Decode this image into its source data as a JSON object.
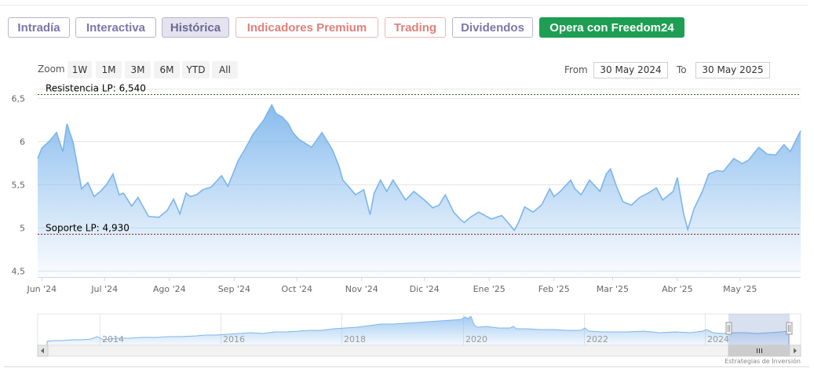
{
  "tabs": [
    {
      "label": "Intradía",
      "style": "normal"
    },
    {
      "label": "Interactiva",
      "style": "normal"
    },
    {
      "label": "Histórica",
      "style": "active"
    },
    {
      "label": "Indicadores Premium",
      "style": "premium"
    },
    {
      "label": "Trading",
      "style": "premium"
    },
    {
      "label": "Dividendos",
      "style": "normal"
    },
    {
      "label": "Opera con Freedom24",
      "style": "cta"
    }
  ],
  "zoom": {
    "label": "Zoom",
    "buttons": [
      "1W",
      "1M",
      "3M",
      "6M",
      "YTD",
      "All"
    ]
  },
  "range": {
    "from_label": "From",
    "from_value": "30 May 2024",
    "to_label": "To",
    "to_value": "30 May 2025"
  },
  "chart_data": {
    "type": "area",
    "y_ticks": [
      "6,5",
      "6",
      "5,5",
      "5",
      "4,5"
    ],
    "y_tick_values": [
      6.5,
      6.0,
      5.5,
      5.0,
      4.5
    ],
    "ylim": [
      4.43,
      6.58
    ],
    "xlim": [
      "2024-05-30",
      "2025-05-30"
    ],
    "x_ticks": [
      "Jun '24",
      "Jul '24",
      "Ago '24",
      "Sep '24",
      "Oct '24",
      "Nov '24",
      "Dic '24",
      "Ene '25",
      "Feb '25",
      "Mar '25",
      "Abr '25",
      "May '25"
    ],
    "x_tick_dates": [
      "2024-06-01",
      "2024-07-01",
      "2024-08-01",
      "2024-09-01",
      "2024-10-01",
      "2024-11-01",
      "2024-12-01",
      "2025-01-01",
      "2025-02-01",
      "2025-03-01",
      "2025-04-01",
      "2025-05-01"
    ],
    "grid": true,
    "series_color": "#7cb5ec",
    "series": [
      {
        "x": [
          "2024-05-30",
          "2024-06-01",
          "2024-06-05",
          "2024-06-08",
          "2024-06-11",
          "2024-06-13",
          "2024-06-16",
          "2024-06-20",
          "2024-06-23",
          "2024-06-26",
          "2024-06-29",
          "2024-07-02",
          "2024-07-05",
          "2024-07-08",
          "2024-07-10",
          "2024-07-14",
          "2024-07-17",
          "2024-07-22",
          "2024-07-27",
          "2024-07-31",
          "2024-08-03",
          "2024-08-06",
          "2024-08-09",
          "2024-08-11",
          "2024-08-14",
          "2024-08-17",
          "2024-08-21",
          "2024-08-26",
          "2024-08-29",
          "2024-08-31",
          "2024-09-03",
          "2024-09-06",
          "2024-09-10",
          "2024-09-15",
          "2024-09-19",
          "2024-09-21",
          "2024-09-24",
          "2024-09-27",
          "2024-09-29",
          "2024-10-02",
          "2024-10-08",
          "2024-10-13",
          "2024-10-18",
          "2024-10-21",
          "2024-10-23",
          "2024-10-27",
          "2024-10-29",
          "2024-11-02",
          "2024-11-05",
          "2024-11-07",
          "2024-11-10",
          "2024-11-13",
          "2024-11-16",
          "2024-11-22",
          "2024-11-26",
          "2024-12-01",
          "2024-12-05",
          "2024-12-08",
          "2024-12-11",
          "2024-12-15",
          "2024-12-18",
          "2024-12-20",
          "2024-12-23",
          "2024-12-27",
          "2025-01-02",
          "2025-01-07",
          "2025-01-10",
          "2025-01-13",
          "2025-01-15",
          "2025-01-18",
          "2025-01-22",
          "2025-01-26",
          "2025-01-30",
          "2025-02-01",
          "2025-02-04",
          "2025-02-09",
          "2025-02-11",
          "2025-02-14",
          "2025-02-18",
          "2025-02-23",
          "2025-02-26",
          "2025-02-28",
          "2025-03-03",
          "2025-03-06",
          "2025-03-10",
          "2025-03-14",
          "2025-03-18",
          "2025-03-22",
          "2025-03-25",
          "2025-03-30",
          "2025-04-01",
          "2025-04-04",
          "2025-04-06",
          "2025-04-09",
          "2025-04-13",
          "2025-04-16",
          "2025-04-20",
          "2025-04-23",
          "2025-04-28",
          "2025-05-02",
          "2025-05-05",
          "2025-05-10",
          "2025-05-14",
          "2025-05-18",
          "2025-05-22",
          "2025-05-25",
          "2025-05-30"
        ],
        "y": [
          5.8,
          5.92,
          6.01,
          6.1,
          5.88,
          6.2,
          5.98,
          5.45,
          5.52,
          5.36,
          5.42,
          5.5,
          5.62,
          5.38,
          5.4,
          5.25,
          5.35,
          5.13,
          5.12,
          5.2,
          5.33,
          5.16,
          5.4,
          5.36,
          5.38,
          5.44,
          5.47,
          5.6,
          5.48,
          5.6,
          5.78,
          5.9,
          6.08,
          6.24,
          6.42,
          6.32,
          6.28,
          6.2,
          6.1,
          6.02,
          5.93,
          6.1,
          5.9,
          5.72,
          5.55,
          5.44,
          5.38,
          5.44,
          5.15,
          5.4,
          5.55,
          5.42,
          5.55,
          5.32,
          5.42,
          5.32,
          5.23,
          5.26,
          5.38,
          5.18,
          5.1,
          5.06,
          5.12,
          5.18,
          5.1,
          5.14,
          5.06,
          4.97,
          5.06,
          5.24,
          5.18,
          5.26,
          5.45,
          5.36,
          5.42,
          5.55,
          5.45,
          5.38,
          5.55,
          5.42,
          5.62,
          5.68,
          5.47,
          5.3,
          5.26,
          5.35,
          5.4,
          5.46,
          5.32,
          5.42,
          5.58,
          5.16,
          4.98,
          5.22,
          5.42,
          5.62,
          5.66,
          5.65,
          5.8,
          5.74,
          5.78,
          5.93,
          5.85,
          5.84,
          5.96,
          5.88,
          6.12
        ]
      }
    ],
    "annotations": [
      {
        "label": "Resistencia LP: 6,540",
        "value": 6.54,
        "color": "#2f5f2f"
      },
      {
        "label": "Soporte LP: 4,930",
        "value": 4.93,
        "color": "#8b1a1a"
      }
    ]
  },
  "navigator": {
    "years": [
      "2014",
      "2016",
      "2018",
      "2020",
      "2022",
      "2024"
    ],
    "selection_handle_icon": "grip-handle-icon"
  },
  "scrollbar": {
    "left_icon": "arrow-left-icon",
    "right_icon": "arrow-right-icon",
    "thumb_icon": "grip-icon"
  },
  "credits": "Estrategias de Inversión"
}
